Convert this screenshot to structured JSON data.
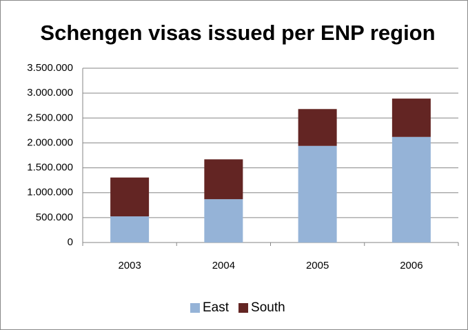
{
  "chart_data": {
    "type": "stacked_bar",
    "title": "Schengen visas issued per ENP region",
    "categories": [
      "2003",
      "2004",
      "2005",
      "2006"
    ],
    "series": [
      {
        "name": "East",
        "color": "#95b3d7",
        "values": [
          525000,
          870000,
          1940000,
          2120000
        ]
      },
      {
        "name": "South",
        "color": "#632523",
        "values": [
          780000,
          800000,
          740000,
          770000
        ]
      }
    ],
    "ylim": [
      0,
      3500000
    ],
    "yticks": [
      0,
      {
        "value": 500000,
        "label": "500.000"
      },
      {
        "value": 1000000,
        "label": "1.000.000"
      },
      {
        "value": 1500000,
        "label": "1.500.000"
      },
      {
        "value": 2000000,
        "label": "2.000.000"
      },
      {
        "value": 2500000,
        "label": "2.500.000"
      },
      {
        "value": 3000000,
        "label": "3.000.000"
      },
      {
        "value": 3500000,
        "label": "3.500.000"
      }
    ],
    "grid": true,
    "legend": "bottom"
  }
}
